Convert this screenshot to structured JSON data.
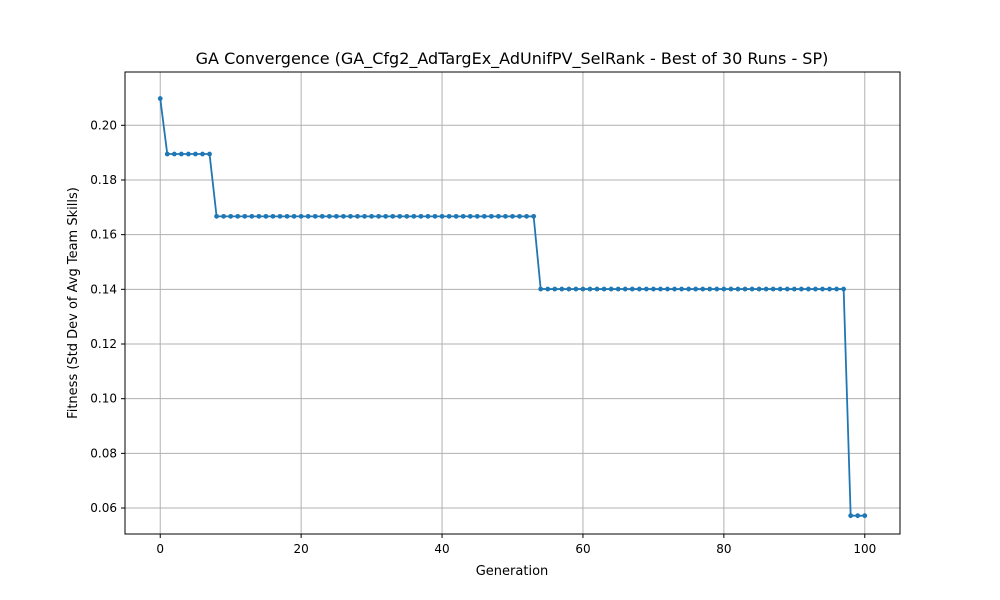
{
  "chart_data": {
    "type": "line",
    "title": "GA Convergence (GA_Cfg2_AdTargEx_AdUnifPV_SelRank - Best of 30 Runs - SP)",
    "xlabel": "Generation",
    "ylabel": "Fitness (Std Dev of Avg Team Skills)",
    "xlim": [
      -5,
      105
    ],
    "ylim": [
      0.0505,
      0.2195
    ],
    "xticks": [
      0,
      20,
      40,
      60,
      80,
      100
    ],
    "yticks": [
      0.06,
      0.08,
      0.1,
      0.12,
      0.14,
      0.16,
      0.18,
      0.2
    ],
    "xtick_labels": [
      "0",
      "20",
      "40",
      "60",
      "80",
      "100"
    ],
    "ytick_labels": [
      "0.06",
      "0.08",
      "0.10",
      "0.12",
      "0.14",
      "0.16",
      "0.18",
      "0.20"
    ],
    "grid": true,
    "color": "#1f77b4",
    "segments": [
      {
        "from": 0,
        "to": 0,
        "value": 0.2098
      },
      {
        "from": 1,
        "to": 7,
        "value": 0.1895
      },
      {
        "from": 8,
        "to": 53,
        "value": 0.1667
      },
      {
        "from": 54,
        "to": 97,
        "value": 0.1401
      },
      {
        "from": 98,
        "to": 100,
        "value": 0.0572
      }
    ]
  }
}
